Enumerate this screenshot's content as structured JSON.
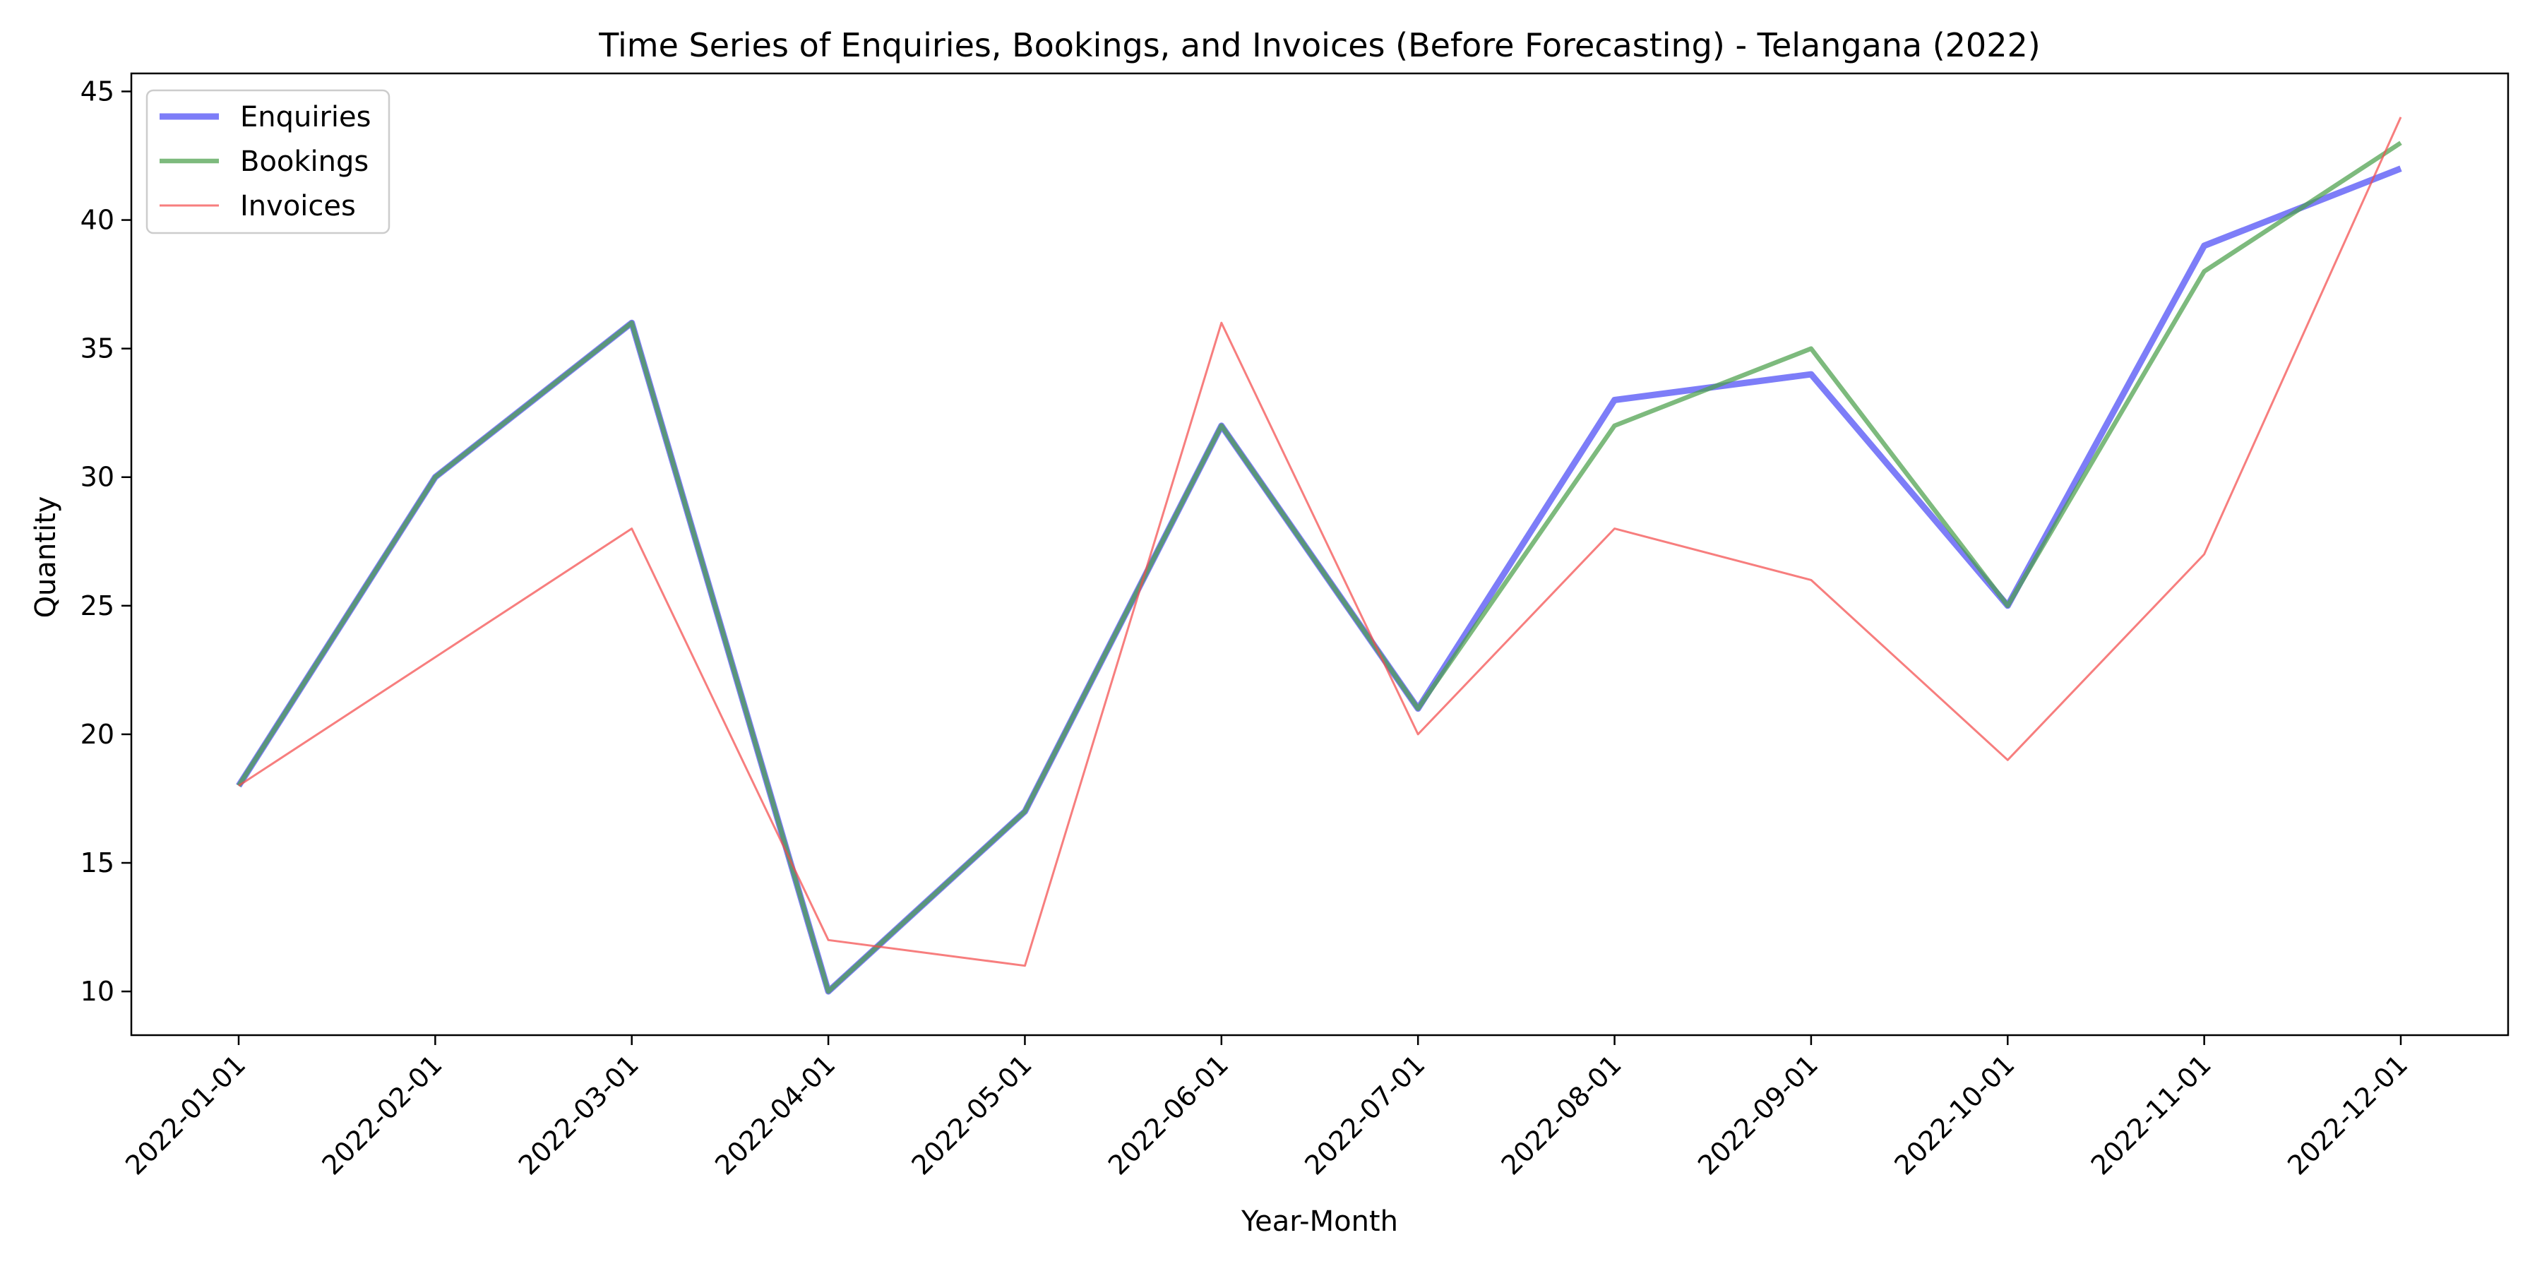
{
  "chart_data": {
    "type": "line",
    "title": "Time Series of Enquiries, Bookings, and Invoices (Before Forecasting) - Telangana (2022)",
    "xlabel": "Year-Month",
    "ylabel": "Quantity",
    "categories": [
      "2022-01-01",
      "2022-02-01",
      "2022-03-01",
      "2022-04-01",
      "2022-05-01",
      "2022-06-01",
      "2022-07-01",
      "2022-08-01",
      "2022-09-01",
      "2022-10-01",
      "2022-11-01",
      "2022-12-01"
    ],
    "ylim": [
      8.3,
      45.7
    ],
    "yticks": [
      10,
      15,
      20,
      25,
      30,
      35,
      40,
      45
    ],
    "grid": false,
    "legend_position": "upper-left",
    "series": [
      {
        "name": "Enquiries",
        "color": "#4b4bf5",
        "values": [
          18,
          30,
          36,
          10,
          17,
          32,
          21,
          33,
          34,
          25,
          39,
          42
        ]
      },
      {
        "name": "Bookings",
        "color": "#4b9f4b",
        "values": [
          18,
          30,
          36,
          10,
          17,
          32,
          21,
          32,
          35,
          25,
          38,
          43
        ]
      },
      {
        "name": "Invoices",
        "color": "#f44c4c",
        "values": [
          18,
          23,
          28,
          12,
          11,
          36,
          20,
          28,
          26,
          19,
          27,
          44
        ]
      }
    ]
  }
}
